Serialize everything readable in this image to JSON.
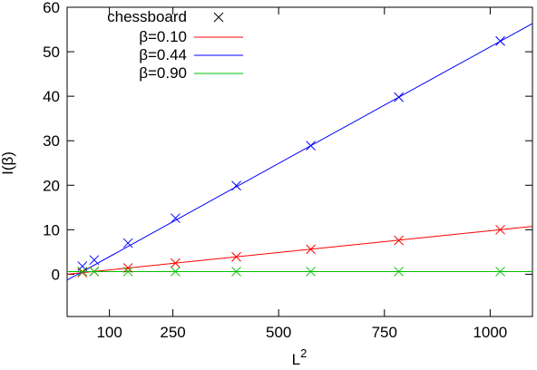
{
  "chart_data": {
    "type": "line",
    "xlabel": "L",
    "xlabel_sup": "2",
    "ylabel": "I(β)",
    "xlim": [
      0,
      1100
    ],
    "ylim": [
      -9.5,
      60
    ],
    "xticks": [
      100,
      250,
      500,
      750,
      1000
    ],
    "yticks": [
      0,
      10,
      20,
      30,
      40,
      50,
      60
    ],
    "grid": false,
    "legend_position": "top-left",
    "markers": {
      "name": "chessboard",
      "color": "#000000",
      "x": [
        36,
        64,
        144,
        256,
        400,
        576,
        784,
        1024
      ],
      "series": [
        {
          "color": "#ff0000",
          "y": [
            0.4,
            0.6,
            1.4,
            2.5,
            3.9,
            5.6,
            7.6,
            10.0
          ]
        },
        {
          "color": "#0000ff",
          "y": [
            1.8,
            3.2,
            7.0,
            12.6,
            19.9,
            28.9,
            39.8,
            52.4
          ]
        },
        {
          "color": "#00c000",
          "y": [
            0.6,
            0.6,
            0.6,
            0.6,
            0.6,
            0.6,
            0.6,
            0.6
          ]
        }
      ]
    },
    "series": [
      {
        "name": "β=0.10",
        "color": "#ff0000",
        "intercept": 0.0,
        "slope": 0.00977
      },
      {
        "name": "β=0.44",
        "color": "#0000ff",
        "intercept": -1.3,
        "slope": 0.0524
      },
      {
        "name": "β=0.90",
        "color": "#00c000",
        "intercept": 0.6,
        "slope": 0.0
      }
    ]
  }
}
